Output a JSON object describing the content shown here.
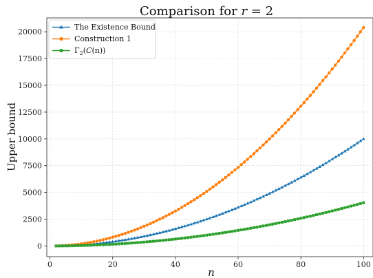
{
  "chart_data": {
    "type": "line",
    "title": "Comparison for r = 2",
    "title_parts": {
      "prefix": "Comparison for ",
      "var": "r",
      "suffix": " = 2"
    },
    "xlabel": "n",
    "ylabel": "Upper bound",
    "xlim": [
      -1,
      103
    ],
    "ylim": [
      -1000,
      21300
    ],
    "x_ticks": [
      0,
      20,
      40,
      60,
      80,
      100
    ],
    "y_ticks": [
      0,
      2500,
      5000,
      7500,
      10000,
      12500,
      15000,
      17500,
      20000
    ],
    "grid": true,
    "legend_position": "top-left",
    "x_start": 2,
    "x_end": 100,
    "x_step": 1,
    "series": [
      {
        "name": "The Existence Bound",
        "color": "#1f77b4",
        "marker": "triangle",
        "coefficient": 1.0
      },
      {
        "name": "Construction 1",
        "color": "#ff7f0e",
        "marker": "circle",
        "coefficient": 2.04
      },
      {
        "name": "Γ2(C(n))",
        "color": "#2ca02c",
        "marker": "square",
        "coefficient": 0.404,
        "name_parts": {
          "gamma": "Γ",
          "sub": "2",
          "rest_open": "(",
          "C": "C",
          "inner": "(n))"
        }
      }
    ]
  }
}
